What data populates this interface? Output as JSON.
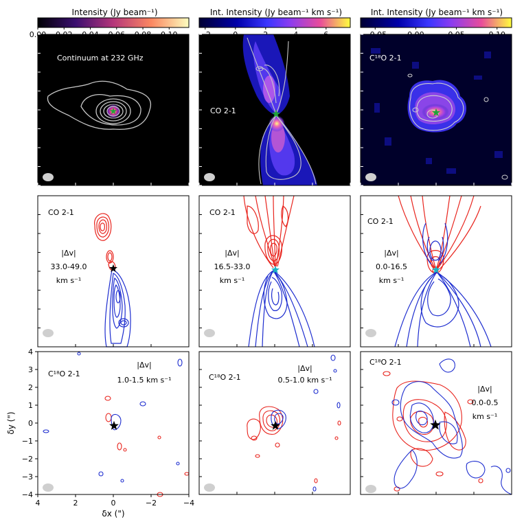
{
  "colorbars": [
    {
      "label": "Intensity (Jy beam⁻¹)",
      "ticks": [
        "0.00",
        "0.02",
        "0.04",
        "0.06",
        "0.08",
        "0.10"
      ],
      "range": [
        0.0,
        0.115
      ]
    },
    {
      "label": "Int. Intensity (Jy beam⁻¹ km s⁻¹)",
      "ticks": [
        "−2",
        "0",
        "2",
        "4",
        "6"
      ],
      "range": [
        -2.4,
        7.6
      ]
    },
    {
      "label": "Int. Intensity (Jy beam⁻¹ km s⁻¹)",
      "ticks": [
        "−0.05",
        "0.00",
        "0.05",
        "0.10"
      ],
      "range": [
        -0.068,
        0.118
      ]
    }
  ],
  "panels": [
    {
      "id": "continuum",
      "title": "Continuum at 232 GHz",
      "star_color": "#1fa33a"
    },
    {
      "id": "co-mom0",
      "title": "CO 2-1",
      "star_color": "#1fa33a"
    },
    {
      "id": "c18o-mom0",
      "title": "C¹⁸O 2-1",
      "star_color": "#1fa33a"
    },
    {
      "id": "co-high",
      "title": "CO 2-1",
      "dv_label": "|Δv|",
      "dv_range": "33.0-49.0",
      "dv_unit": "km s⁻¹",
      "star_color": "#000000"
    },
    {
      "id": "co-mid",
      "title": "CO 2-1",
      "dv_label": "|Δv|",
      "dv_range": "16.5-33.0",
      "dv_unit": "km s⁻¹",
      "star_color": "#19b3c4"
    },
    {
      "id": "co-low",
      "title": "CO 2-1",
      "dv_label": "|Δv|",
      "dv_range": "0.0-16.5",
      "dv_unit": "km s⁻¹",
      "star_color": "#19b3c4"
    },
    {
      "id": "c18o-high",
      "title": "C¹⁸O 2-1",
      "dv_label": "|Δv|",
      "dv_range": "1.0-1.5 km s⁻¹",
      "star_color": "#000000"
    },
    {
      "id": "c18o-mid",
      "title": "C¹⁸O 2-1",
      "dv_label": "|Δv|",
      "dv_range": "0.5-1.0 km s⁻¹",
      "star_color": "#000000"
    },
    {
      "id": "c18o-low",
      "title": "C¹⁸O 2-1",
      "dv_label": "|Δv|",
      "dv_range": "0.0-0.5",
      "dv_unit": "km s⁻¹",
      "star_color": "#000000"
    }
  ],
  "axes": {
    "xlabel": "δx (\")",
    "ylabel": "δy (\")",
    "xticks": [
      "4",
      "2",
      "0",
      "−2",
      "−4"
    ],
    "yticks": [
      "4",
      "3",
      "2",
      "1",
      "0",
      "−1",
      "−2",
      "−3",
      "−4"
    ],
    "xlim": [
      4,
      -4
    ],
    "ylim": [
      -4,
      4
    ]
  },
  "colors": {
    "redshifted": "#e8231c",
    "blueshifted": "#1c2ccf",
    "contour": "#c8c8c8",
    "beam": "#cfcfcf"
  }
}
